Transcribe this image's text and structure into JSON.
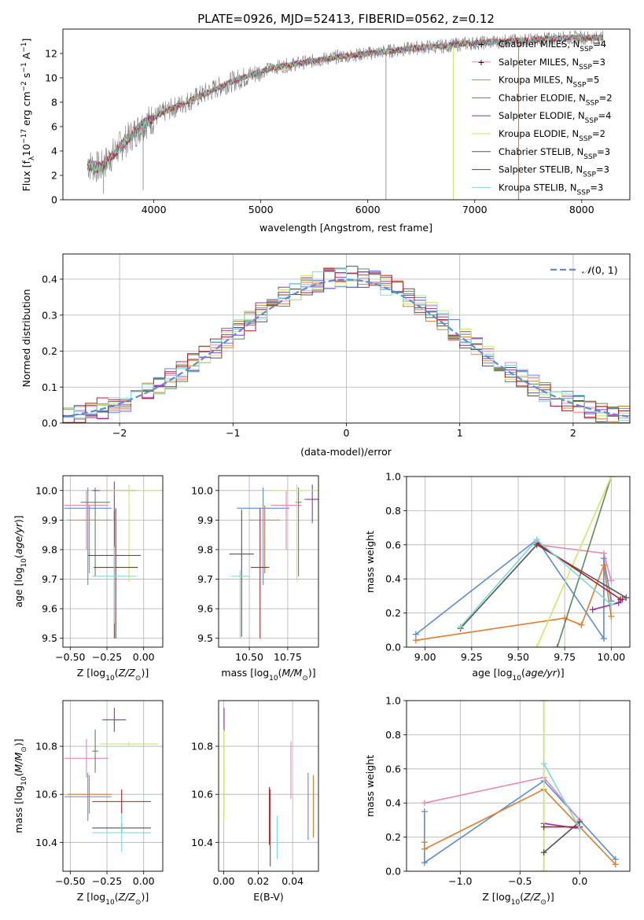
{
  "figure_title": "PLATE=0926, MJD=52413, FIBERID=0562, z=0.12",
  "colors": {
    "chabrier_miles": "#5b8bd8",
    "salpeter_miles": "#e987b6",
    "kroupa_miles": "#e07d2e",
    "chabrier_elodie": "#5a8a5a",
    "salpeter_elodie": "#9b2fb3",
    "kroupa_elodie": "#cbe86b",
    "chabrier_stelib": "#555555",
    "salpeter_stelib": "#b0202a",
    "kroupa_stelib": "#7fd9d9",
    "spectrum": "#808080",
    "gaussian": "#5b8bd8"
  },
  "chart_data": [
    {
      "type": "line",
      "title": "PLATE=0926, MJD=52413, FIBERID=0562, z=0.12",
      "xlabel": "wavelength [Angstrom, rest frame]",
      "ylabel": "Flux [f_λ10^-17 erg cm^-2 s^-1 A^-1]",
      "xlim": [
        3150,
        8450
      ],
      "ylim": [
        0,
        14
      ],
      "xticks": [
        4000,
        5000,
        6000,
        7000,
        8000
      ],
      "yticks": [
        0,
        2,
        4,
        6,
        8,
        10,
        12
      ],
      "grid": false,
      "legend_position": "right",
      "legend": [
        "Chabrier MILES, N_SSP=4",
        "Salpeter MILES, N_SSP=3",
        "Kroupa MILES, N_SSP=5",
        "Chabrier ELODIE, N_SSP=2",
        "Salpeter ELODIE, N_SSP=4",
        "Kroupa ELODIE, N_SSP=2",
        "Chabrier STELIB, N_SSP=3",
        "Salpeter STELIB, N_SSP=3",
        "Kroupa STELIB, N_SSP=3"
      ],
      "continuum": {
        "x": [
          3380,
          3500,
          3700,
          3900,
          4100,
          4300,
          4500,
          4700,
          4900,
          5100,
          5300,
          5500,
          5700,
          5900,
          6100,
          6300,
          6500,
          6700,
          6900,
          7100,
          7300,
          7500,
          7700,
          7900,
          8100,
          8200
        ],
        "y": [
          2.9,
          2.6,
          4.5,
          6.2,
          7.2,
          8.0,
          8.8,
          9.6,
          10.2,
          10.8,
          11.1,
          11.4,
          11.7,
          11.9,
          12.1,
          12.3,
          12.5,
          12.6,
          12.8,
          12.9,
          13.0,
          13.1,
          13.2,
          13.3,
          13.3,
          13.3
        ]
      }
    },
    {
      "type": "line",
      "xlabel": "(data-model)/error",
      "ylabel": "Normed distribution",
      "xlim": [
        -2.5,
        2.5
      ],
      "ylim": [
        0,
        0.47
      ],
      "xticks": [
        -2,
        -1,
        0,
        1,
        2
      ],
      "yticks": [
        0.0,
        0.1,
        0.2,
        0.3,
        0.4
      ],
      "grid": true,
      "legend_position": "top-right",
      "legend": [
        "N(0,1)"
      ],
      "histogram_bins": {
        "start": -2.5,
        "width": 0.1,
        "count": 50
      }
    },
    {
      "type": "scatter",
      "xlabel": "Z [log10(Z/Z_sun)]",
      "ylabel": "age [log10(age/yr)]",
      "xlim": [
        -0.55,
        0.13
      ],
      "ylim": [
        9.47,
        10.05
      ],
      "xticks": [
        -0.5,
        -0.25,
        0.0
      ],
      "yticks": [
        9.5,
        9.6,
        9.7,
        9.8,
        9.9,
        10.0
      ],
      "grid": true,
      "points": [
        {
          "model": "chabrier_miles",
          "x": -0.38,
          "y": 9.94,
          "xerr": 0.16,
          "yerr_low": 0.26,
          "yerr_high": 0.07
        },
        {
          "model": "salpeter_miles",
          "x": -0.39,
          "y": 9.95,
          "xerr": 0.15,
          "yerr_low": 0.15,
          "yerr_high": 0.05
        },
        {
          "model": "kroupa_miles",
          "x": -0.37,
          "y": 9.9,
          "xerr": 0.15,
          "yerr_low": 0.18,
          "yerr_high": 0.05
        },
        {
          "model": "chabrier_elodie",
          "x": -0.33,
          "y": 9.96,
          "xerr": 0.1,
          "yerr_low": 0.25,
          "yerr_high": 0.05
        },
        {
          "model": "salpeter_elodie",
          "x": -0.2,
          "y": 10.0,
          "xerr": 0.15,
          "yerr_low": 0.1,
          "yerr_high": 0.03
        },
        {
          "model": "kroupa_elodie",
          "x": -0.1,
          "y": 10.0,
          "xerr": 0.2,
          "yerr_low": 0.31,
          "yerr_high": 0.02
        },
        {
          "model": "chabrier_stelib",
          "x": -0.2,
          "y": 9.78,
          "xerr": 0.18,
          "yerr_low": 0.28,
          "yerr_high": 0.15
        },
        {
          "model": "salpeter_stelib",
          "x": -0.19,
          "y": 9.74,
          "xerr": 0.15,
          "yerr_low": 0.24,
          "yerr_high": 0.2
        },
        {
          "model": "kroupa_stelib",
          "x": -0.2,
          "y": 9.71,
          "xerr": 0.15,
          "yerr_low": 0.16,
          "yerr_high": 0.1
        }
      ]
    },
    {
      "type": "scatter",
      "xlabel": "mass [log10(M/M_sun)]",
      "xlim": [
        10.3,
        10.95
      ],
      "ylim": [
        9.47,
        10.05
      ],
      "xticks": [
        10.5,
        10.75
      ],
      "yticks": [
        9.5,
        9.6,
        9.7,
        9.8,
        9.9,
        10.0
      ],
      "grid": true,
      "points": [
        {
          "model": "chabrier_miles",
          "x": 10.59,
          "y": 9.94,
          "xerr": 0.17,
          "yerr_low": 0.26,
          "yerr_high": 0.07
        },
        {
          "model": "salpeter_miles",
          "x": 10.74,
          "y": 9.95,
          "xerr": 0.1,
          "yerr_low": 0.15,
          "yerr_high": 0.05
        },
        {
          "model": "kroupa_miles",
          "x": 10.6,
          "y": 9.9,
          "xerr": 0.1,
          "yerr_low": 0.18,
          "yerr_high": 0.05
        },
        {
          "model": "chabrier_elodie",
          "x": 10.82,
          "y": 9.96,
          "xerr": 0.02,
          "yerr_low": 0.25,
          "yerr_high": 0.05
        },
        {
          "model": "salpeter_elodie",
          "x": 10.91,
          "y": 9.97,
          "xerr": 0.05,
          "yerr_low": 0.08,
          "yerr_high": 0.05
        },
        {
          "model": "kroupa_elodie",
          "x": 10.81,
          "y": 10.0,
          "xerr": 0.17,
          "yerr_low": 0.31,
          "yerr_high": 0.02
        },
        {
          "model": "chabrier_stelib",
          "x": 10.45,
          "y": 9.785,
          "xerr": 0.08,
          "yerr_low": 0.28,
          "yerr_high": 0.15
        },
        {
          "model": "salpeter_stelib",
          "x": 10.57,
          "y": 9.74,
          "xerr": 0.06,
          "yerr_low": 0.24,
          "yerr_high": 0.2
        },
        {
          "model": "kroupa_stelib",
          "x": 10.44,
          "y": 9.71,
          "xerr": 0.06,
          "yerr_low": 0.21,
          "yerr_high": 0.02
        }
      ]
    },
    {
      "type": "line",
      "xlabel": "age [log10(age/yr)]",
      "ylabel": "mass weight",
      "xlim": [
        8.9,
        10.1
      ],
      "ylim": [
        0,
        1.0
      ],
      "xticks": [
        9.0,
        9.25,
        9.5,
        9.75,
        10.0
      ],
      "yticks": [
        0.0,
        0.2,
        0.4,
        0.6,
        0.8,
        1.0
      ],
      "grid": true,
      "series": [
        {
          "model": "chabrier_miles",
          "x": [
            8.95,
            9.6,
            9.96,
            9.96,
            10.0
          ],
          "y": [
            0.075,
            0.63,
            0.05,
            0.52,
            0.27
          ]
        },
        {
          "model": "salpeter_miles",
          "x": [
            9.6,
            9.96,
            10.0
          ],
          "y": [
            0.6,
            0.55,
            0.39
          ]
        },
        {
          "model": "kroupa_miles",
          "x": [
            8.95,
            9.75,
            9.84,
            9.96,
            10.0
          ],
          "y": [
            0.04,
            0.17,
            0.13,
            0.48,
            0.18
          ]
        },
        {
          "model": "chabrier_elodie",
          "x": [
            9.71,
            10.0
          ],
          "y": [
            0.0,
            1.0
          ]
        },
        {
          "model": "salpeter_elodie",
          "x": [
            9.9,
            10.04,
            10.06
          ],
          "y": [
            0.22,
            0.26,
            0.28
          ]
        },
        {
          "model": "kroupa_elodie",
          "x": [
            9.6,
            10.0
          ],
          "y": [
            0.0,
            1.0
          ]
        },
        {
          "model": "chabrier_stelib",
          "x": [
            9.19,
            9.6,
            10.08
          ],
          "y": [
            0.11,
            0.6,
            0.29
          ]
        },
        {
          "model": "salpeter_stelib",
          "x": [
            9.6,
            10.05
          ],
          "y": [
            0.61,
            0.28
          ]
        },
        {
          "model": "kroupa_stelib",
          "x": [
            9.19,
            9.6,
            10.0
          ],
          "y": [
            0.12,
            0.63,
            0.25
          ]
        }
      ]
    },
    {
      "type": "scatter",
      "xlabel": "Z [log10(Z/Z_sun)]",
      "ylabel": "mass [log10(M/M_sun)]",
      "xlim": [
        -0.55,
        0.13
      ],
      "ylim": [
        10.28,
        10.99
      ],
      "xticks": [
        -0.5,
        -0.25,
        0.0
      ],
      "yticks": [
        10.4,
        10.6,
        10.8
      ],
      "grid": true,
      "points": [
        {
          "model": "chabrier_miles",
          "x": -0.38,
          "y": 10.59,
          "xerr": 0.16,
          "yerr": 0.1
        },
        {
          "model": "salpeter_miles",
          "x": -0.39,
          "y": 10.75,
          "xerr": 0.15,
          "yerr": 0.08
        },
        {
          "model": "kroupa_miles",
          "x": -0.37,
          "y": 10.6,
          "xerr": 0.15,
          "yerr": 0.08
        },
        {
          "model": "chabrier_elodie",
          "x": -0.33,
          "y": 10.78,
          "xerr": 0.02,
          "yerr": 0.09
        },
        {
          "model": "salpeter_elodie",
          "x": -0.2,
          "y": 10.91,
          "xerr": 0.08,
          "yerr": 0.05
        },
        {
          "model": "kroupa_elodie",
          "x": -0.1,
          "y": 10.81,
          "xerr": 0.2,
          "yerr": 0.01
        },
        {
          "model": "chabrier_stelib",
          "x": -0.15,
          "y": 10.46,
          "xerr": 0.2,
          "yerr": 0.02
        },
        {
          "model": "salpeter_stelib",
          "x": -0.15,
          "y": 10.57,
          "xerr": 0.2,
          "yerr": 0.05
        },
        {
          "model": "kroupa_stelib",
          "x": -0.15,
          "y": 10.44,
          "xerr": 0.2,
          "yerr": 0.08
        }
      ]
    },
    {
      "type": "scatter",
      "xlabel": "E(B-V)",
      "xlim": [
        -0.003,
        0.055
      ],
      "ylim": [
        10.28,
        10.99
      ],
      "xticks": [
        0.0,
        0.02,
        0.04
      ],
      "yticks": [
        10.4,
        10.6,
        10.8
      ],
      "grid": true,
      "points": [
        {
          "model": "chabrier_miles",
          "x": 0.049,
          "y": 10.55,
          "yerr": 0.14
        },
        {
          "model": "salpeter_miles",
          "x": 0.039,
          "y": 10.7,
          "yerr": 0.12
        },
        {
          "model": "kroupa_miles",
          "x": 0.052,
          "y": 10.55,
          "yerr": 0.13
        },
        {
          "model": "chabrier_elodie",
          "x": 0.0,
          "y": 10.68,
          "yerr": 0.17
        },
        {
          "model": "salpeter_elodie",
          "x": 0.0002,
          "y": 10.91,
          "yerr": 0.05
        },
        {
          "model": "kroupa_elodie",
          "x": 0.0,
          "y": 10.68,
          "yerr": 0.19
        },
        {
          "model": "chabrier_stelib",
          "x": 0.027,
          "y": 10.46,
          "yerr": 0.16
        },
        {
          "model": "salpeter_stelib",
          "x": 0.0265,
          "y": 10.51,
          "yerr": 0.12
        },
        {
          "model": "kroupa_stelib",
          "x": 0.031,
          "y": 10.42,
          "yerr": 0.09
        }
      ]
    },
    {
      "type": "line",
      "xlabel": "Z [log10(Z/Z_sun)]",
      "ylabel": "mass weight",
      "xlim": [
        -1.45,
        0.42
      ],
      "ylim": [
        0,
        1.0
      ],
      "xticks": [
        -1.0,
        -0.5,
        0.0
      ],
      "yticks": [
        0.0,
        0.2,
        0.4,
        0.6,
        0.8,
        1.0
      ],
      "grid": true,
      "series": [
        {
          "model": "chabrier_miles",
          "x": [
            -1.3,
            -1.3,
            -0.3,
            0.3
          ],
          "y": [
            0.35,
            0.05,
            0.53,
            0.07
          ]
        },
        {
          "model": "salpeter_miles",
          "x": [
            -1.3,
            -0.3,
            0.0
          ],
          "y": [
            0.4,
            0.55,
            0.3
          ]
        },
        {
          "model": "kroupa_miles",
          "x": [
            -1.3,
            -1.3,
            -0.3,
            0.3
          ],
          "y": [
            0.17,
            0.13,
            0.48,
            0.04
          ]
        },
        {
          "model": "chabrier_elodie",
          "x": [
            -0.3,
            -0.3
          ],
          "y": [
            0.0,
            1.0
          ]
        },
        {
          "model": "salpeter_elodie",
          "x": [
            -0.3,
            0.0
          ],
          "y": [
            0.28,
            0.25
          ]
        },
        {
          "model": "kroupa_elodie",
          "x": [
            -0.3,
            -0.3
          ],
          "y": [
            0.0,
            1.0
          ]
        },
        {
          "model": "chabrier_stelib",
          "x": [
            -0.3,
            0.0
          ],
          "y": [
            0.11,
            0.29
          ]
        },
        {
          "model": "salpeter_stelib",
          "x": [
            -0.3,
            0.0
          ],
          "y": [
            0.26,
            0.26
          ]
        },
        {
          "model": "kroupa_stelib",
          "x": [
            -0.3,
            0.0
          ],
          "y": [
            0.63,
            0.25
          ]
        }
      ]
    }
  ]
}
